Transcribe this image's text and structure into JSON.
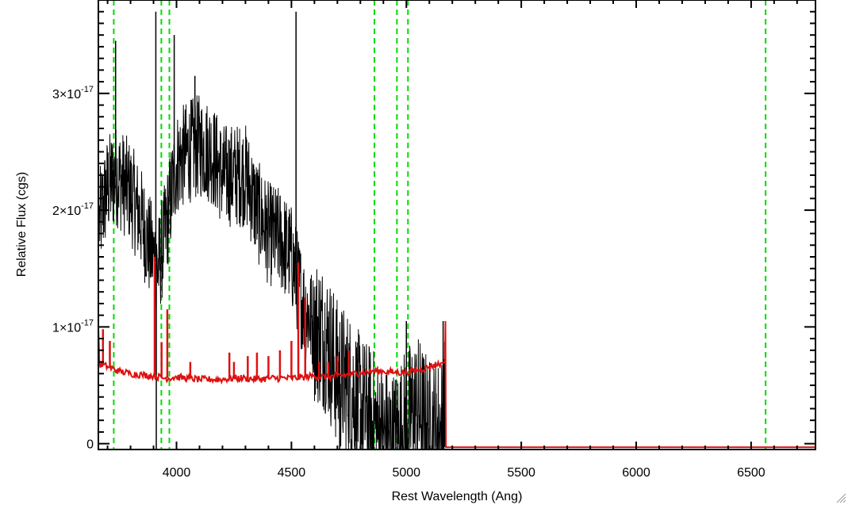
{
  "chart_data": {
    "type": "line",
    "title": "",
    "xlabel": "Rest Wavelength (Ang)",
    "ylabel": "Relative Flux (cgs)",
    "xlim": [
      3660,
      6780
    ],
    "ylim": [
      -5e-19,
      3.8e-17
    ],
    "x_ticks": [
      {
        "value": 4000,
        "label": "4000"
      },
      {
        "value": 4500,
        "label": "4500"
      },
      {
        "value": 5000,
        "label": "5000"
      },
      {
        "value": 5500,
        "label": "5500"
      },
      {
        "value": 6000,
        "label": "6000"
      },
      {
        "value": 6500,
        "label": "6500"
      }
    ],
    "y_ticks": [
      {
        "value": 0,
        "mantissa": "0",
        "exponent": ""
      },
      {
        "value": 1e-17,
        "mantissa": "1×10",
        "exponent": "-17"
      },
      {
        "value": 2e-17,
        "mantissa": "2×10",
        "exponent": "-17"
      },
      {
        "value": 3e-17,
        "mantissa": "3×10",
        "exponent": "-17"
      }
    ],
    "grid": false,
    "reference_lines": {
      "color": "#00dd00",
      "style": "dashed",
      "x": [
        3727,
        3934,
        3969,
        4861,
        4959,
        5007,
        6563
      ]
    },
    "series": [
      {
        "color": "#000000",
        "style": "noisy-line",
        "points": [
          [
            3665,
            1.9e-17
          ],
          [
            3700,
            2.2e-17
          ],
          [
            3740,
            2.3e-17
          ],
          [
            3800,
            2.15e-17
          ],
          [
            3850,
            1.9e-17
          ],
          [
            3880,
            1.7e-17
          ],
          [
            3900,
            1.6e-17
          ],
          [
            3920,
            1.5e-17
          ],
          [
            3950,
            1.8e-17
          ],
          [
            4000,
            2.4e-17
          ],
          [
            4050,
            2.5e-17
          ],
          [
            4100,
            2.55e-17
          ],
          [
            4150,
            2.5e-17
          ],
          [
            4200,
            2.3e-17
          ],
          [
            4250,
            2.3e-17
          ],
          [
            4300,
            2.3e-17
          ],
          [
            4350,
            2e-17
          ],
          [
            4400,
            1.8e-17
          ],
          [
            4450,
            1.75e-17
          ],
          [
            4500,
            1.6e-17
          ],
          [
            4550,
            1.2e-17
          ],
          [
            4600,
            1e-17
          ],
          [
            4650,
            9e-18
          ],
          [
            4700,
            6e-18
          ],
          [
            4750,
            5e-18
          ],
          [
            4800,
            3e-18
          ],
          [
            4850,
            2e-18
          ],
          [
            4900,
            5e-19
          ],
          [
            4950,
            0.0
          ],
          [
            5000,
            2e-18
          ],
          [
            5050,
            3e-18
          ],
          [
            5100,
            1e-18
          ],
          [
            5150,
            1e-18
          ],
          [
            5170,
            3e-18
          ]
        ],
        "spikes": [
          [
            3735,
            3.45e-17
          ],
          [
            3910,
            3.7e-17
          ],
          [
            3912,
            -5e-19
          ],
          [
            3990,
            3.5e-17
          ],
          [
            4080,
            3.15e-17
          ],
          [
            4520,
            3.7e-17
          ],
          [
            4710,
            -5e-19
          ],
          [
            4800,
            -5e-19
          ],
          [
            4850,
            -5e-19
          ],
          [
            5000,
            1.05e-17
          ],
          [
            5160,
            1.05e-17
          ]
        ]
      },
      {
        "color": "#dd1111",
        "style": "line",
        "points": [
          [
            3660,
            1e-17
          ],
          [
            3665,
            6.8e-18
          ],
          [
            3700,
            6.6e-18
          ],
          [
            3750,
            6.2e-18
          ],
          [
            3800,
            6e-18
          ],
          [
            3850,
            5.9e-18
          ],
          [
            3900,
            5.8e-18
          ],
          [
            3950,
            5.6e-18
          ],
          [
            4000,
            5.7e-18
          ],
          [
            4050,
            5.6e-18
          ],
          [
            4100,
            5.5e-18
          ],
          [
            4150,
            5.5e-18
          ],
          [
            4200,
            5.5e-18
          ],
          [
            4250,
            5.6e-18
          ],
          [
            4300,
            5.6e-18
          ],
          [
            4350,
            5.5e-18
          ],
          [
            4400,
            5.6e-18
          ],
          [
            4450,
            5.6e-18
          ],
          [
            4500,
            5.6e-18
          ],
          [
            4550,
            5.7e-18
          ],
          [
            4600,
            5.8e-18
          ],
          [
            4650,
            5.7e-18
          ],
          [
            4700,
            5.8e-18
          ],
          [
            4750,
            5.9e-18
          ],
          [
            4800,
            6.1e-18
          ],
          [
            4850,
            6.2e-18
          ],
          [
            4900,
            6.2e-18
          ],
          [
            4950,
            6.1e-18
          ],
          [
            5000,
            6.1e-18
          ],
          [
            5050,
            6.3e-18
          ],
          [
            5100,
            6.6e-18
          ],
          [
            5150,
            6.9e-18
          ],
          [
            5168,
            7e-18
          ],
          [
            5170,
            1.05e-17
          ],
          [
            5172,
            -3e-19
          ],
          [
            6780,
            -3e-19
          ]
        ],
        "spikes": [
          [
            3680,
            9.8e-18
          ],
          [
            3710,
            8.8e-18
          ],
          [
            3905,
            1.6e-17
          ],
          [
            3935,
            8.7e-18
          ],
          [
            3960,
            1.15e-17
          ],
          [
            4060,
            7e-18
          ],
          [
            4230,
            7.8e-18
          ],
          [
            4250,
            7e-18
          ],
          [
            4310,
            7.5e-18
          ],
          [
            4350,
            7.8e-18
          ],
          [
            4400,
            7.5e-18
          ],
          [
            4450,
            8e-18
          ],
          [
            4500,
            8.8e-18
          ],
          [
            4530,
            1.55e-17
          ],
          [
            4560,
            1.25e-17
          ],
          [
            4620,
            7e-18
          ],
          [
            4660,
            7e-18
          ],
          [
            4700,
            7.5e-18
          ],
          [
            4750,
            8e-18
          ]
        ]
      }
    ]
  },
  "icons": {
    "resize_grip": "resize-grip-icon"
  }
}
